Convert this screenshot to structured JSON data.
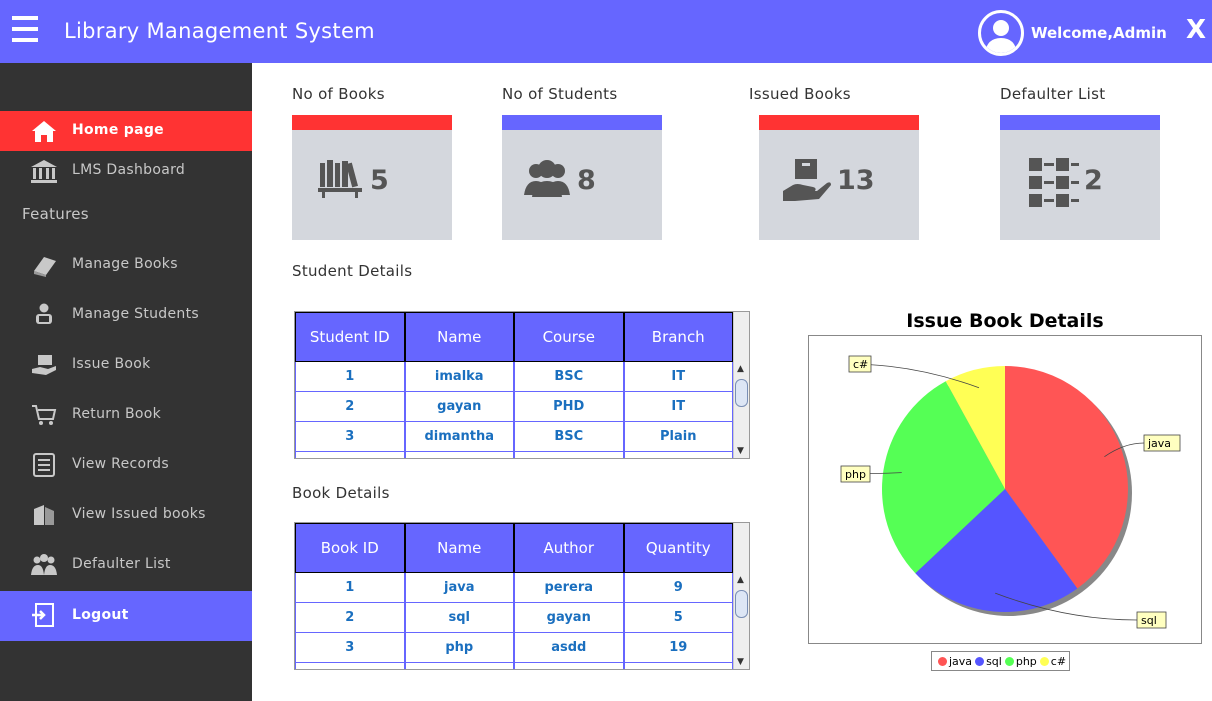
{
  "header": {
    "title": "Library Management System",
    "welcome": "Welcome,Admin",
    "close_label": "X"
  },
  "sidebar": {
    "home": "Home page",
    "dashboard": "LMS Dashboard",
    "features": "Features",
    "items": [
      "Manage Books",
      "Manage Students",
      "Issue Book",
      "Return Book",
      "View Records",
      "View Issued books",
      "Defaulter List"
    ],
    "logout": "Logout"
  },
  "cards": [
    {
      "title": "No of Books",
      "value": "5",
      "bar_color": "#ff3333"
    },
    {
      "title": "No of Students",
      "value": "8",
      "bar_color": "#6666ff"
    },
    {
      "title": "Issued Books",
      "value": "13",
      "bar_color": "#ff3333"
    },
    {
      "title": "Defaulter List",
      "value": "2",
      "bar_color": "#6666ff"
    }
  ],
  "student_details": {
    "title": "Student Details",
    "columns": [
      "Student ID",
      "Name",
      "Course",
      "Branch"
    ],
    "rows": [
      [
        "1",
        "imalka",
        "BSC",
        "IT"
      ],
      [
        "2",
        "gayan",
        "PHD",
        "IT"
      ],
      [
        "3",
        "dimantha",
        "BSC",
        "Plain"
      ]
    ]
  },
  "book_details": {
    "title": "Book Details",
    "columns": [
      "Book ID",
      "Name",
      "Author",
      "Quantity"
    ],
    "rows": [
      [
        "1",
        "java",
        "perera",
        "9"
      ],
      [
        "2",
        "sql",
        "gayan",
        "5"
      ],
      [
        "3",
        "php",
        "asdd",
        "19"
      ]
    ]
  },
  "chart_data": {
    "type": "pie",
    "title": "Issue Book Details",
    "categories": [
      "java",
      "sql",
      "php",
      "c#"
    ],
    "values": [
      40,
      23,
      29,
      8
    ],
    "colors": [
      "#ff5555",
      "#5555ff",
      "#55ff55",
      "#ffff55"
    ],
    "legend": "bottom"
  },
  "colors": {
    "accent": "#6666ff",
    "active": "#ff3333",
    "sidebar": "#333333"
  }
}
